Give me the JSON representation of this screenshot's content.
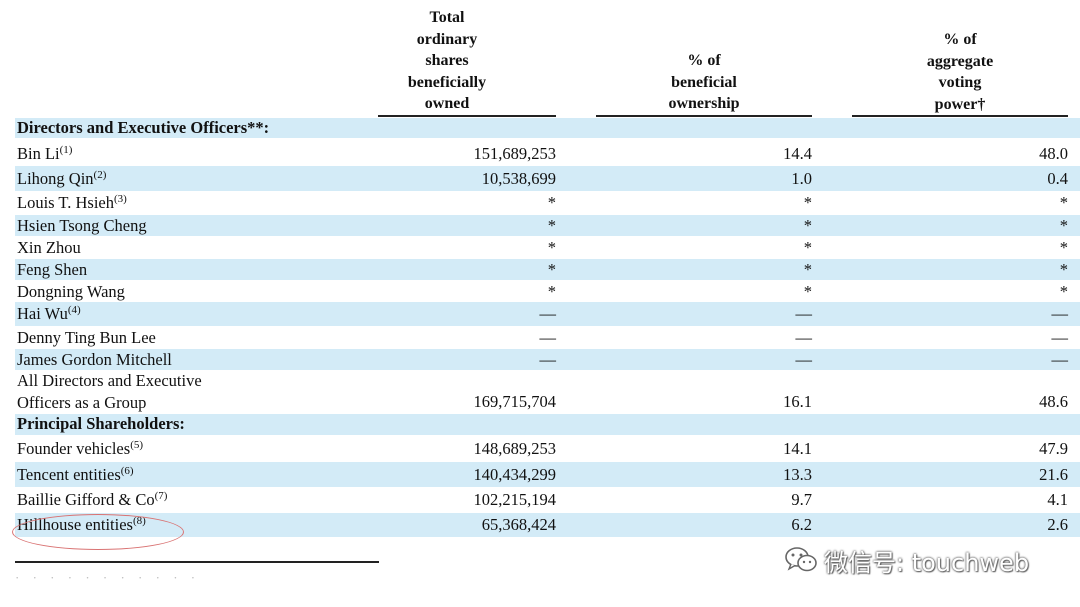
{
  "table": {
    "headers": {
      "shares": [
        "Total",
        "ordinary",
        "shares",
        "beneficially",
        "owned"
      ],
      "ownership": [
        "% of",
        "beneficial",
        "ownership"
      ],
      "voting": [
        "% of",
        "aggregate",
        "voting",
        "power†"
      ]
    },
    "rows": [
      {
        "kind": "section",
        "name": "Directors and Executive Officers**:",
        "shade": true
      },
      {
        "name": "Bin Li",
        "sup": "(1)",
        "shares": "151,689,253",
        "pct": "14.4",
        "vote": "48.0",
        "shade": false
      },
      {
        "name": "Lihong Qin",
        "sup": "(2)",
        "shares": "10,538,699",
        "pct": "1.0",
        "vote": "0.4",
        "shade": true
      },
      {
        "name": "Louis T. Hsieh",
        "sup": "(3)",
        "shares": "*",
        "pct": "*",
        "vote": "*",
        "shade": false
      },
      {
        "name": "Hsien Tsong Cheng",
        "shares": "*",
        "pct": "*",
        "vote": "*",
        "shade": true
      },
      {
        "name": "Xin Zhou",
        "shares": "*",
        "pct": "*",
        "vote": "*",
        "shade": false
      },
      {
        "name": "Feng Shen",
        "shares": "*",
        "pct": "*",
        "vote": "*",
        "shade": true
      },
      {
        "name": "Dongning Wang",
        "shares": "*",
        "pct": "*",
        "vote": "*",
        "shade": false
      },
      {
        "name": "Hai Wu",
        "sup": "(4)",
        "shares": "—",
        "pct": "—",
        "vote": "—",
        "shade": true
      },
      {
        "name": "Denny Ting Bun Lee",
        "shares": "—",
        "pct": "—",
        "vote": "—",
        "shade": false
      },
      {
        "name": "James Gordon Mitchell",
        "shares": "—",
        "pct": "—",
        "vote": "—",
        "shade": true
      },
      {
        "name": "All Directors and Executive",
        "name2": "Officers as a Group",
        "shares": "169,715,704",
        "pct": "16.1",
        "vote": "48.6",
        "shade": false
      },
      {
        "kind": "section",
        "name": "Principal Shareholders:",
        "shade": true
      },
      {
        "name": "Founder vehicles",
        "sup": "(5)",
        "shares": "148,689,253",
        "pct": "14.1",
        "vote": "47.9",
        "shade": false
      },
      {
        "name": "Tencent entities",
        "sup": "(6)",
        "shares": "140,434,299",
        "pct": "13.3",
        "vote": "21.6",
        "shade": true
      },
      {
        "name": "Baillie Gifford & Co",
        "sup": "(7)",
        "shares": "102,215,194",
        "pct": "9.7",
        "vote": "4.1",
        "shade": false
      },
      {
        "name": "Hillhouse entities",
        "sup": "(8)",
        "shares": "65,368,424",
        "pct": "6.2",
        "vote": "2.6",
        "shade": true,
        "highlight": true
      }
    ]
  },
  "footer": {
    "text": "· · · · · · · · · · ·"
  },
  "watermark": {
    "icon": "wechat-icon",
    "text": "微信号: touchweb"
  },
  "colors": {
    "row_shade": "#d3ebf7",
    "highlight_ellipse": "#d97373"
  }
}
